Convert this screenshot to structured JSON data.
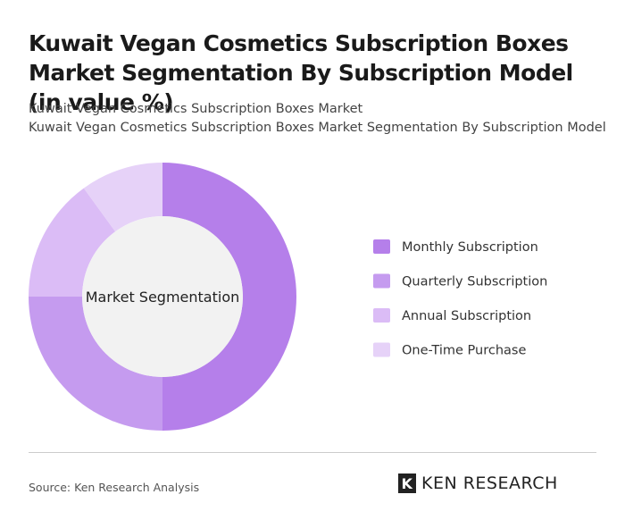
{
  "chart_data": {
    "type": "donut",
    "title": "Kuwait Vegan Cosmetics Subscription Boxes Market Segmentation By Subscription Model (in value %)",
    "subtitles": [
      "Kuwait Vegan Cosmetics Subscription Boxes Market",
      "Kuwait Vegan Cosmetics Subscription Boxes Market Segmentation By Subscription Model"
    ],
    "center_label": "Market Segmentation",
    "categories": [
      "Monthly Subscription",
      "Quarterly Subscription",
      "Annual Subscription",
      "One-Time Purchase"
    ],
    "values": [
      50,
      25,
      15,
      10
    ],
    "colors": [
      "#b57fea",
      "#c59bef",
      "#dbbcf6",
      "#e6d2f8"
    ],
    "legend": "right"
  },
  "footer": {
    "source": "Source: Ken Research Analysis",
    "brand": "KEN RESEARCH"
  }
}
